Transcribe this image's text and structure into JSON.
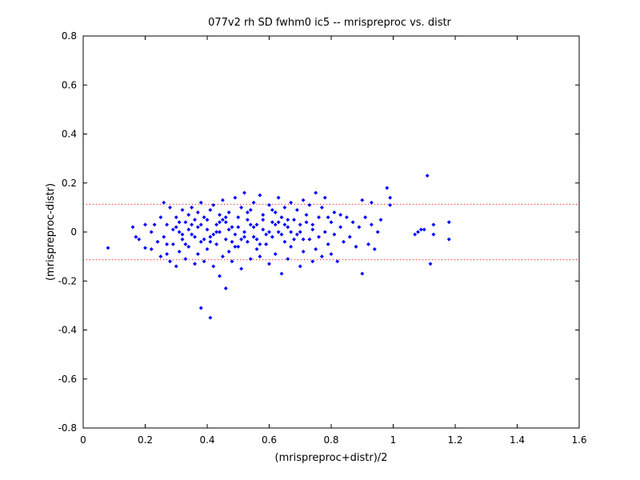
{
  "chart_data": {
    "type": "scatter",
    "title": "077v2 rh SD fwhm0 ic5 -- mrispreproc vs. distr",
    "xlabel": "(mrispreproc+distr)/2",
    "ylabel": "(mrispreproc-distr)",
    "xlim": [
      0,
      1.6
    ],
    "ylim": [
      -0.8,
      0.8
    ],
    "x_ticks": [
      0,
      0.2,
      0.4,
      0.6,
      0.8,
      1,
      1.2,
      1.4,
      1.6
    ],
    "x_tick_labels": [
      "0",
      "0.2",
      "0.4",
      "0.6",
      "0.8",
      "1",
      "1.2",
      "1.4",
      "1.6"
    ],
    "y_ticks": [
      -0.8,
      -0.6,
      -0.4,
      -0.2,
      0,
      0.2,
      0.4,
      0.6,
      0.8
    ],
    "y_tick_labels": [
      "-0.8",
      "-0.6",
      "-0.4",
      "-0.2",
      "0",
      "0.2",
      "0.4",
      "0.6",
      "0.8"
    ],
    "grid": false,
    "marker_color": "#0000ff",
    "reference_lines": [
      {
        "y": 0.113,
        "color": "#ff0000",
        "style": "dotted"
      },
      {
        "y": -0.113,
        "color": "#ff0000",
        "style": "dotted"
      }
    ],
    "series": [
      {
        "points": [
          [
            0.08,
            -0.065
          ],
          [
            0.16,
            0.02
          ],
          [
            0.17,
            -0.02
          ],
          [
            0.18,
            -0.03
          ],
          [
            0.2,
            0.03
          ],
          [
            0.2,
            -0.065
          ],
          [
            0.22,
            -0.07
          ],
          [
            0.22,
            0.0
          ],
          [
            0.23,
            0.03
          ],
          [
            0.24,
            -0.04
          ],
          [
            0.25,
            0.06
          ],
          [
            0.25,
            -0.1
          ],
          [
            0.26,
            0.12
          ],
          [
            0.26,
            -0.02
          ],
          [
            0.27,
            -0.09
          ],
          [
            0.27,
            0.03
          ],
          [
            0.28,
            -0.12
          ],
          [
            0.28,
            0.1
          ],
          [
            0.29,
            -0.05
          ],
          [
            0.3,
            0.06
          ],
          [
            0.3,
            -0.14
          ],
          [
            0.31,
            0.0
          ],
          [
            0.31,
            -0.08
          ],
          [
            0.32,
            0.09
          ],
          [
            0.32,
            -0.03
          ],
          [
            0.33,
            0.04
          ],
          [
            0.33,
            -0.11
          ],
          [
            0.34,
            0.07
          ],
          [
            0.34,
            -0.06
          ],
          [
            0.35,
            0.1
          ],
          [
            0.35,
            -0.01
          ],
          [
            0.36,
            -0.13
          ],
          [
            0.36,
            0.05
          ],
          [
            0.37,
            0.02
          ],
          [
            0.37,
            -0.09
          ],
          [
            0.38,
            0.12
          ],
          [
            0.38,
            -0.04
          ],
          [
            0.38,
            -0.31
          ],
          [
            0.39,
            0.06
          ],
          [
            0.39,
            -0.12
          ],
          [
            0.4,
            0.01
          ],
          [
            0.4,
            -0.07
          ],
          [
            0.41,
            -0.35
          ],
          [
            0.41,
            0.09
          ],
          [
            0.41,
            -0.02
          ],
          [
            0.42,
            0.11
          ],
          [
            0.42,
            -0.14
          ],
          [
            0.43,
            0.03
          ],
          [
            0.43,
            -0.05
          ],
          [
            0.44,
            0.07
          ],
          [
            0.44,
            -0.18
          ],
          [
            0.44,
            0.0
          ],
          [
            0.45,
            0.13
          ],
          [
            0.45,
            -0.1
          ],
          [
            0.46,
            -0.23
          ],
          [
            0.46,
            0.04
          ],
          [
            0.46,
            -0.03
          ],
          [
            0.47,
            0.08
          ],
          [
            0.47,
            -0.08
          ],
          [
            0.48,
            0.02
          ],
          [
            0.48,
            -0.12
          ],
          [
            0.49,
            0.14
          ],
          [
            0.49,
            -0.01
          ],
          [
            0.5,
            0.06
          ],
          [
            0.5,
            -0.06
          ],
          [
            0.51,
            0.1
          ],
          [
            0.51,
            -0.15
          ],
          [
            0.52,
            0.0
          ],
          [
            0.52,
            0.16
          ],
          [
            0.53,
            -0.04
          ],
          [
            0.53,
            0.05
          ],
          [
            0.54,
            -0.11
          ],
          [
            0.54,
            0.09
          ],
          [
            0.55,
            -0.02
          ],
          [
            0.55,
            0.12
          ],
          [
            0.56,
            0.03
          ],
          [
            0.56,
            -0.07
          ],
          [
            0.57,
            0.15
          ],
          [
            0.57,
            -0.1
          ],
          [
            0.58,
            0.01
          ],
          [
            0.58,
            0.07
          ],
          [
            0.59,
            -0.05
          ],
          [
            0.6,
            0.11
          ],
          [
            0.6,
            -0.13
          ],
          [
            0.61,
            0.04
          ],
          [
            0.61,
            -0.02
          ],
          [
            0.62,
            0.08
          ],
          [
            0.62,
            -0.09
          ],
          [
            0.63,
            0.14
          ],
          [
            0.63,
            0.0
          ],
          [
            0.64,
            -0.17
          ],
          [
            0.64,
            0.06
          ],
          [
            0.65,
            -0.04
          ],
          [
            0.65,
            0.1
          ],
          [
            0.66,
            0.02
          ],
          [
            0.66,
            -0.11
          ],
          [
            0.67,
            0.12
          ],
          [
            0.67,
            -0.06
          ],
          [
            0.68,
            0.05
          ],
          [
            0.69,
            -0.01
          ],
          [
            0.69,
            0.09
          ],
          [
            0.7,
            -0.14
          ],
          [
            0.7,
            0.03
          ],
          [
            0.71,
            0.13
          ],
          [
            0.71,
            -0.08
          ],
          [
            0.72,
            0.07
          ],
          [
            0.73,
            -0.03
          ],
          [
            0.73,
            0.11
          ],
          [
            0.74,
            -0.12
          ],
          [
            0.74,
            0.01
          ],
          [
            0.75,
            0.16
          ],
          [
            0.75,
            -0.07
          ],
          [
            0.76,
            0.06
          ],
          [
            0.77,
            -0.1
          ],
          [
            0.77,
            0.1
          ],
          [
            0.78,
            0.0
          ],
          [
            0.78,
            0.14
          ],
          [
            0.79,
            -0.05
          ],
          [
            0.8,
            0.04
          ],
          [
            0.8,
            -0.09
          ],
          [
            0.81,
            0.08
          ],
          [
            0.82,
            -0.12
          ],
          [
            0.83,
            0.02
          ],
          [
            0.83,
            0.07
          ],
          [
            0.84,
            -0.04
          ],
          [
            0.85,
            0.06
          ],
          [
            0.86,
            -0.02
          ],
          [
            0.87,
            0.04
          ],
          [
            0.88,
            -0.06
          ],
          [
            0.89,
            0.02
          ],
          [
            0.9,
            0.13
          ],
          [
            0.9,
            -0.17
          ],
          [
            0.91,
            0.06
          ],
          [
            0.92,
            -0.05
          ],
          [
            0.93,
            0.12
          ],
          [
            0.93,
            0.03
          ],
          [
            0.94,
            -0.07
          ],
          [
            0.95,
            0.0
          ],
          [
            0.96,
            0.05
          ],
          [
            0.98,
            0.18
          ],
          [
            0.99,
            0.14
          ],
          [
            0.99,
            0.11
          ],
          [
            1.07,
            -0.01
          ],
          [
            1.08,
            0.0
          ],
          [
            1.09,
            0.01
          ],
          [
            1.1,
            0.01
          ],
          [
            1.11,
            0.23
          ],
          [
            1.12,
            -0.13
          ],
          [
            1.13,
            0.03
          ],
          [
            1.13,
            -0.01
          ],
          [
            1.18,
            0.04
          ],
          [
            1.18,
            -0.03
          ],
          [
            0.3,
            0.02
          ],
          [
            0.32,
            -0.01
          ],
          [
            0.34,
            0.01
          ],
          [
            0.36,
            -0.02
          ],
          [
            0.38,
            0.03
          ],
          [
            0.4,
            0.05
          ],
          [
            0.42,
            -0.01
          ],
          [
            0.44,
            0.04
          ],
          [
            0.46,
            0.06
          ],
          [
            0.48,
            -0.04
          ],
          [
            0.5,
            0.02
          ],
          [
            0.52,
            -0.02
          ],
          [
            0.54,
            0.03
          ],
          [
            0.56,
            -0.03
          ],
          [
            0.58,
            0.05
          ],
          [
            0.6,
            0.0
          ],
          [
            0.62,
            0.03
          ],
          [
            0.64,
            -0.01
          ],
          [
            0.66,
            0.05
          ],
          [
            0.68,
            -0.03
          ],
          [
            0.7,
            0.0
          ],
          [
            0.72,
            0.04
          ],
          [
            0.74,
            0.03
          ],
          [
            0.76,
            -0.02
          ],
          [
            0.35,
            0.03
          ],
          [
            0.39,
            -0.03
          ],
          [
            0.43,
            0.0
          ],
          [
            0.47,
            0.01
          ],
          [
            0.51,
            -0.03
          ],
          [
            0.55,
            0.02
          ],
          [
            0.59,
            -0.01
          ],
          [
            0.63,
            0.04
          ],
          [
            0.67,
            0.0
          ],
          [
            0.71,
            -0.03
          ],
          [
            0.45,
            0.05
          ],
          [
            0.49,
            -0.06
          ],
          [
            0.53,
            0.08
          ],
          [
            0.57,
            -0.05
          ],
          [
            0.61,
            0.09
          ],
          [
            0.65,
            0.03
          ],
          [
            0.41,
            -0.04
          ],
          [
            0.37,
            0.08
          ],
          [
            0.33,
            -0.05
          ],
          [
            0.29,
            0.01
          ],
          [
            0.27,
            -0.05
          ],
          [
            0.31,
            0.04
          ],
          [
            0.79,
            0.06
          ],
          [
            0.81,
            -0.01
          ]
        ]
      }
    ]
  }
}
